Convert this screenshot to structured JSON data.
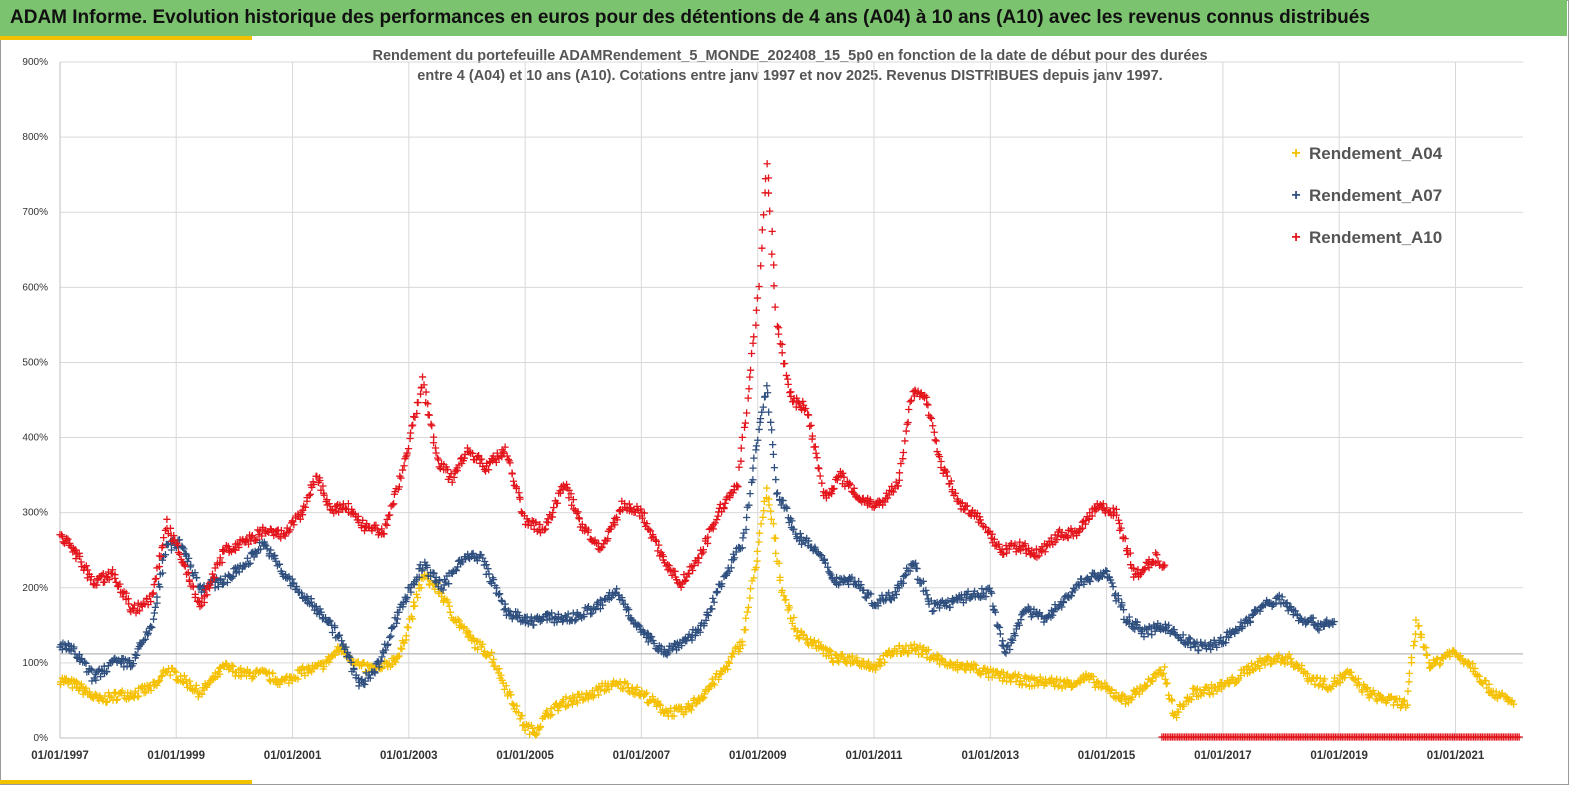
{
  "header": {
    "title": "ADAM Informe. Evolution historique des performances en euros pour des détentions de 4 ans (A04) à 10 ans (A10) avec les revenus connus distribués"
  },
  "colors": {
    "banner": "#7cc36f",
    "accent": "#f2c200",
    "A04": "#f5c000",
    "A07": "#2f4f7f",
    "A10": "#e3141b"
  },
  "chart_data": {
    "type": "scatter",
    "title_line1": "Rendement du portefeuille ADAMRendement_5_MONDE_202408_15_5p0  en fonction de la date de début pour des durées",
    "title_line2": "entre 4 (A04)  et 10 ans (A10). Cotations  entre janv 1997 et nov 2025. Revenus DISTRIBUES depuis janv 1997.",
    "x_type": "date",
    "xlim": [
      "1997-01-01",
      "2022-03-01"
    ],
    "ylim": [
      0,
      9
    ],
    "y_format": "percent",
    "y_ticks": [
      "0%",
      "100%",
      "200%",
      "300%",
      "400%",
      "500%",
      "600%",
      "700%",
      "800%",
      "900%"
    ],
    "x_ticks": [
      "01/01/1997",
      "01/01/1999",
      "01/01/2001",
      "01/01/2003",
      "01/01/2005",
      "01/01/2007",
      "01/01/2009",
      "01/01/2011",
      "01/01/2013",
      "01/01/2015",
      "01/01/2017",
      "01/01/2019",
      "01/01/2021"
    ],
    "grid": true,
    "legend_position": "top-right",
    "reference_line": 1.12,
    "series": [
      {
        "name": "Rendement_A04",
        "color_key": "A04",
        "points": [
          [
            "1997-01-01",
            0.78
          ],
          [
            "1997-05-01",
            0.68
          ],
          [
            "1997-09-01",
            0.5
          ],
          [
            "1998-01-01",
            0.57
          ],
          [
            "1998-05-01",
            0.6
          ],
          [
            "1998-09-01",
            0.7
          ],
          [
            "1998-11-01",
            0.92
          ],
          [
            "1999-02-01",
            0.8
          ],
          [
            "1999-06-01",
            0.6
          ],
          [
            "1999-11-01",
            0.95
          ],
          [
            "2000-03-01",
            0.85
          ],
          [
            "2000-07-01",
            0.85
          ],
          [
            "2000-11-01",
            0.75
          ],
          [
            "2001-03-01",
            0.88
          ],
          [
            "2001-07-01",
            0.95
          ],
          [
            "2001-11-01",
            1.2
          ],
          [
            "2002-03-01",
            0.95
          ],
          [
            "2002-07-01",
            0.9
          ],
          [
            "2002-11-01",
            1.1
          ],
          [
            "2003-01-01",
            1.5
          ],
          [
            "2003-04-01",
            2.15
          ],
          [
            "2003-07-01",
            2.0
          ],
          [
            "2003-10-01",
            1.65
          ],
          [
            "2004-02-01",
            1.3
          ],
          [
            "2004-06-01",
            1.1
          ],
          [
            "2004-10-01",
            0.55
          ],
          [
            "2005-01-01",
            0.15
          ],
          [
            "2005-03-01",
            0.08
          ],
          [
            "2005-06-01",
            0.35
          ],
          [
            "2005-10-01",
            0.5
          ],
          [
            "2006-02-01",
            0.55
          ],
          [
            "2006-06-01",
            0.7
          ],
          [
            "2006-10-01",
            0.7
          ],
          [
            "2007-02-01",
            0.55
          ],
          [
            "2007-06-01",
            0.35
          ],
          [
            "2007-10-01",
            0.35
          ],
          [
            "2008-02-01",
            0.6
          ],
          [
            "2008-06-01",
            0.9
          ],
          [
            "2008-10-01",
            1.3
          ],
          [
            "2009-01-01",
            2.5
          ],
          [
            "2009-03-01",
            3.3
          ],
          [
            "2009-06-01",
            2.0
          ],
          [
            "2009-09-01",
            1.4
          ],
          [
            "2010-01-01",
            1.25
          ],
          [
            "2010-05-01",
            1.05
          ],
          [
            "2010-09-01",
            1.05
          ],
          [
            "2011-01-01",
            0.95
          ],
          [
            "2011-05-01",
            1.15
          ],
          [
            "2011-09-01",
            1.2
          ],
          [
            "2012-01-01",
            1.1
          ],
          [
            "2012-05-01",
            0.95
          ],
          [
            "2012-09-01",
            0.95
          ],
          [
            "2013-01-01",
            0.85
          ],
          [
            "2013-05-01",
            0.8
          ],
          [
            "2013-09-01",
            0.75
          ],
          [
            "2014-01-01",
            0.75
          ],
          [
            "2014-05-01",
            0.72
          ],
          [
            "2014-09-01",
            0.8
          ],
          [
            "2015-01-01",
            0.65
          ],
          [
            "2015-05-01",
            0.5
          ],
          [
            "2015-09-01",
            0.7
          ],
          [
            "2016-01-01",
            0.9
          ],
          [
            "2016-03-01",
            0.3
          ],
          [
            "2016-07-01",
            0.6
          ],
          [
            "2016-11-01",
            0.65
          ],
          [
            "2017-03-01",
            0.75
          ],
          [
            "2017-07-01",
            0.95
          ],
          [
            "2017-11-01",
            1.05
          ],
          [
            "2018-03-01",
            1.05
          ],
          [
            "2018-07-01",
            0.8
          ],
          [
            "2018-11-01",
            0.7
          ],
          [
            "2019-03-01",
            0.85
          ],
          [
            "2019-07-01",
            0.6
          ],
          [
            "2019-11-01",
            0.5
          ],
          [
            "2020-03-01",
            0.45
          ],
          [
            "2020-05-01",
            1.55
          ],
          [
            "2020-08-01",
            0.95
          ],
          [
            "2020-12-01",
            1.15
          ],
          [
            "2021-04-01",
            1.0
          ],
          [
            "2021-08-01",
            0.65
          ],
          [
            "2022-01-01",
            0.45
          ]
        ]
      },
      {
        "name": "Rendement_A07",
        "color_key": "A07",
        "points": [
          [
            "1997-01-01",
            1.25
          ],
          [
            "1997-04-01",
            1.15
          ],
          [
            "1997-08-01",
            0.8
          ],
          [
            "1997-12-01",
            1.0
          ],
          [
            "1998-04-01",
            1.0
          ],
          [
            "1998-08-01",
            1.5
          ],
          [
            "1998-11-01",
            2.55
          ],
          [
            "1999-02-01",
            2.6
          ],
          [
            "1999-06-01",
            2.0
          ],
          [
            "1999-11-01",
            2.1
          ],
          [
            "2000-03-01",
            2.3
          ],
          [
            "2000-07-01",
            2.6
          ],
          [
            "2000-11-01",
            2.2
          ],
          [
            "2001-03-01",
            1.9
          ],
          [
            "2001-08-01",
            1.6
          ],
          [
            "2001-11-01",
            1.3
          ],
          [
            "2002-03-01",
            0.7
          ],
          [
            "2002-07-01",
            1.0
          ],
          [
            "2002-11-01",
            1.7
          ],
          [
            "2003-04-01",
            2.3
          ],
          [
            "2003-08-01",
            2.0
          ],
          [
            "2003-12-01",
            2.4
          ],
          [
            "2004-04-01",
            2.4
          ],
          [
            "2004-09-01",
            1.7
          ],
          [
            "2005-01-01",
            1.55
          ],
          [
            "2005-06-01",
            1.6
          ],
          [
            "2005-11-01",
            1.6
          ],
          [
            "2006-04-01",
            1.75
          ],
          [
            "2006-08-01",
            1.95
          ],
          [
            "2007-01-01",
            1.4
          ],
          [
            "2007-06-01",
            1.15
          ],
          [
            "2007-10-01",
            1.3
          ],
          [
            "2008-02-01",
            1.5
          ],
          [
            "2008-06-01",
            2.15
          ],
          [
            "2008-10-01",
            2.6
          ],
          [
            "2009-01-01",
            4.0
          ],
          [
            "2009-03-01",
            4.7
          ],
          [
            "2009-05-01",
            3.3
          ],
          [
            "2009-09-01",
            2.7
          ],
          [
            "2010-01-01",
            2.5
          ],
          [
            "2010-05-01",
            2.1
          ],
          [
            "2010-09-01",
            2.1
          ],
          [
            "2011-01-01",
            1.8
          ],
          [
            "2011-05-01",
            1.9
          ],
          [
            "2011-09-01",
            2.35
          ],
          [
            "2012-01-01",
            1.75
          ],
          [
            "2012-05-01",
            1.8
          ],
          [
            "2012-09-01",
            1.9
          ],
          [
            "2013-01-01",
            1.95
          ],
          [
            "2013-04-01",
            1.1
          ],
          [
            "2013-08-01",
            1.7
          ],
          [
            "2013-12-01",
            1.6
          ],
          [
            "2014-04-01",
            1.8
          ],
          [
            "2014-08-01",
            2.1
          ],
          [
            "2015-01-01",
            2.2
          ],
          [
            "2015-05-01",
            1.6
          ],
          [
            "2015-09-01",
            1.4
          ],
          [
            "2016-01-01",
            1.5
          ],
          [
            "2016-05-01",
            1.3
          ],
          [
            "2016-09-01",
            1.2
          ],
          [
            "2017-01-01",
            1.3
          ],
          [
            "2017-05-01",
            1.5
          ],
          [
            "2017-09-01",
            1.75
          ],
          [
            "2018-01-01",
            1.85
          ],
          [
            "2018-05-01",
            1.6
          ],
          [
            "2018-09-01",
            1.5
          ],
          [
            "2018-12-01",
            1.55
          ]
        ]
      },
      {
        "name": "Rendement_A10",
        "color_key": "A10",
        "points": [
          [
            "1997-01-01",
            2.7
          ],
          [
            "1997-04-01",
            2.5
          ],
          [
            "1997-08-01",
            2.05
          ],
          [
            "1997-12-01",
            2.2
          ],
          [
            "1998-04-01",
            1.7
          ],
          [
            "1998-08-01",
            1.85
          ],
          [
            "1998-11-01",
            2.85
          ],
          [
            "1999-02-01",
            2.4
          ],
          [
            "1999-06-01",
            1.75
          ],
          [
            "1999-11-01",
            2.5
          ],
          [
            "2000-03-01",
            2.6
          ],
          [
            "2000-07-01",
            2.75
          ],
          [
            "2000-11-01",
            2.7
          ],
          [
            "2001-03-01",
            3.0
          ],
          [
            "2001-06-01",
            3.5
          ],
          [
            "2001-09-01",
            3.0
          ],
          [
            "2001-12-01",
            3.1
          ],
          [
            "2002-04-01",
            2.8
          ],
          [
            "2002-08-01",
            2.75
          ],
          [
            "2002-11-01",
            3.4
          ],
          [
            "2003-01-01",
            3.9
          ],
          [
            "2003-04-01",
            4.75
          ],
          [
            "2003-07-01",
            3.7
          ],
          [
            "2003-10-01",
            3.45
          ],
          [
            "2004-01-01",
            3.85
          ],
          [
            "2004-05-01",
            3.6
          ],
          [
            "2004-09-01",
            3.85
          ],
          [
            "2005-01-01",
            2.9
          ],
          [
            "2005-05-01",
            2.75
          ],
          [
            "2005-09-01",
            3.4
          ],
          [
            "2006-01-01",
            2.8
          ],
          [
            "2006-05-01",
            2.5
          ],
          [
            "2006-09-01",
            3.1
          ],
          [
            "2007-01-01",
            3.0
          ],
          [
            "2007-05-01",
            2.45
          ],
          [
            "2007-09-01",
            2.05
          ],
          [
            "2008-01-01",
            2.4
          ],
          [
            "2008-05-01",
            3.0
          ],
          [
            "2008-09-01",
            3.4
          ],
          [
            "2009-01-01",
            5.8
          ],
          [
            "2009-03-01",
            7.7
          ],
          [
            "2009-05-01",
            5.5
          ],
          [
            "2009-08-01",
            4.5
          ],
          [
            "2009-11-01",
            4.4
          ],
          [
            "2010-03-01",
            3.2
          ],
          [
            "2010-06-01",
            3.5
          ],
          [
            "2010-10-01",
            3.2
          ],
          [
            "2011-02-01",
            3.1
          ],
          [
            "2011-06-01",
            3.4
          ],
          [
            "2011-09-01",
            4.6
          ],
          [
            "2011-12-01",
            4.5
          ],
          [
            "2012-03-01",
            3.6
          ],
          [
            "2012-07-01",
            3.1
          ],
          [
            "2012-11-01",
            2.9
          ],
          [
            "2013-03-01",
            2.5
          ],
          [
            "2013-07-01",
            2.55
          ],
          [
            "2013-11-01",
            2.45
          ],
          [
            "2014-03-01",
            2.7
          ],
          [
            "2014-07-01",
            2.75
          ],
          [
            "2014-11-01",
            3.1
          ],
          [
            "2015-03-01",
            3.0
          ],
          [
            "2015-07-01",
            2.15
          ],
          [
            "2015-11-01",
            2.4
          ],
          [
            "2016-01-01",
            2.3
          ]
        ]
      }
    ]
  }
}
